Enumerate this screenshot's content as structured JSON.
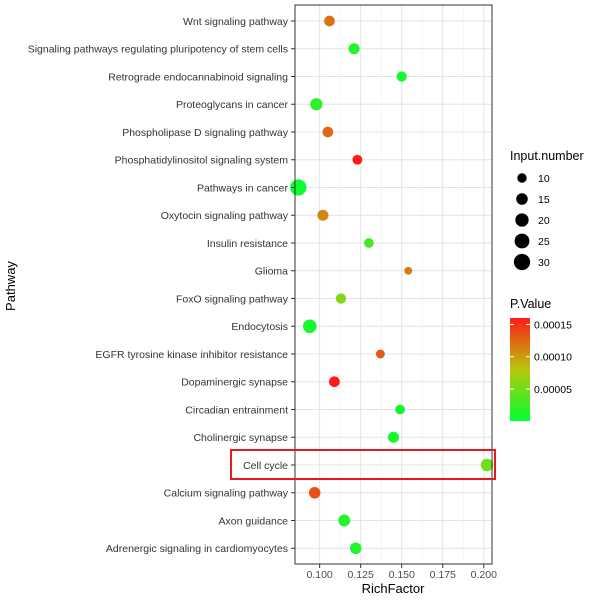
{
  "chart_data": {
    "type": "scatter",
    "xlabel": "RichFactor",
    "ylabel": "Pathway",
    "xlim": [
      0.085,
      0.205
    ],
    "xticks": [
      0.1,
      0.125,
      0.15,
      0.175,
      0.2
    ],
    "xtick_labels": [
      "0.100",
      "0.125",
      "0.150",
      "0.175",
      "0.200"
    ],
    "categories": [
      "Wnt signaling pathway",
      "Signaling pathways regulating pluripotency of stem cells",
      "Retrograde endocannabinoid signaling",
      "Proteoglycans in cancer",
      "Phospholipase D signaling pathway",
      "Phosphatidylinositol signaling system",
      "Pathways in cancer",
      "Oxytocin signaling pathway",
      "Insulin resistance",
      "Glioma",
      "FoxO signaling pathway",
      "Endocytosis",
      "EGFR tyrosine kinase inhibitor resistance",
      "Dopaminergic synapse",
      "Circadian entrainment",
      "Cholinergic synapse",
      "Cell cycle",
      "Calcium signaling pathway",
      "Axon guidance",
      "Adrenergic signaling in cardiomyocytes"
    ],
    "points": [
      {
        "pathway": "Wnt signaling pathway",
        "rich_factor": 0.106,
        "input_number": 13,
        "p_value": 0.00012
      },
      {
        "pathway": "Signaling pathways regulating pluripotency of stem cells",
        "rich_factor": 0.121,
        "input_number": 14,
        "p_value": 1.5e-05
      },
      {
        "pathway": "Retrograde endocannabinoid signaling",
        "rich_factor": 0.15,
        "input_number": 12,
        "p_value": 5e-06
      },
      {
        "pathway": "Proteoglycans in cancer",
        "rich_factor": 0.098,
        "input_number": 17,
        "p_value": 2e-05
      },
      {
        "pathway": "Phospholipase D signaling pathway",
        "rich_factor": 0.105,
        "input_number": 13,
        "p_value": 0.000125
      },
      {
        "pathway": "Phosphatidylinositol signaling system",
        "rich_factor": 0.123,
        "input_number": 11,
        "p_value": 0.00016
      },
      {
        "pathway": "Pathways in cancer",
        "rich_factor": 0.087,
        "input_number": 30,
        "p_value": 5e-06
      },
      {
        "pathway": "Oxytocin signaling pathway",
        "rich_factor": 0.102,
        "input_number": 14,
        "p_value": 0.00011
      },
      {
        "pathway": "Insulin resistance",
        "rich_factor": 0.13,
        "input_number": 11,
        "p_value": 3e-05
      },
      {
        "pathway": "Glioma",
        "rich_factor": 0.154,
        "input_number": 7,
        "p_value": 0.000115
      },
      {
        "pathway": "FoxO signaling pathway",
        "rich_factor": 0.113,
        "input_number": 12,
        "p_value": 5.5e-05
      },
      {
        "pathway": "Endocytosis",
        "rich_factor": 0.094,
        "input_number": 21,
        "p_value": 1e-05
      },
      {
        "pathway": "EGFR tyrosine kinase inhibitor resistance",
        "rich_factor": 0.137,
        "input_number": 9,
        "p_value": 0.00013
      },
      {
        "pathway": "Dopaminergic synapse",
        "rich_factor": 0.109,
        "input_number": 13,
        "p_value": 0.00016
      },
      {
        "pathway": "Circadian entrainment",
        "rich_factor": 0.149,
        "input_number": 11,
        "p_value": 1e-05
      },
      {
        "pathway": "Cholinergic synapse",
        "rich_factor": 0.145,
        "input_number": 14,
        "p_value": 1e-05
      },
      {
        "pathway": "Cell cycle",
        "rich_factor": 0.202,
        "input_number": 18,
        "p_value": 5e-05
      },
      {
        "pathway": "Calcium signaling pathway",
        "rich_factor": 0.097,
        "input_number": 15,
        "p_value": 0.000135
      },
      {
        "pathway": "Axon guidance",
        "rich_factor": 0.115,
        "input_number": 16,
        "p_value": 1.5e-05
      },
      {
        "pathway": "Adrenergic signaling in cardiomyocytes",
        "rich_factor": 0.122,
        "input_number": 15,
        "p_value": 1.5e-05
      }
    ],
    "size_legend": {
      "title": "Input.number",
      "values": [
        10,
        15,
        20,
        25,
        30
      ],
      "labels": [
        "10",
        "15",
        "20",
        "25",
        "30"
      ]
    },
    "color_legend": {
      "title": "P.Value",
      "range": [
        5e-07,
        0.00016
      ],
      "ticks": [
        0.00015,
        0.0001,
        5e-05
      ],
      "labels": [
        "0.00015",
        "0.00010",
        "0.00005"
      ],
      "colors": [
        "#00ff33",
        "#ff1a1a"
      ]
    },
    "highlight": {
      "pathway": "Cell cycle",
      "color": "#e8191e"
    },
    "grid": true,
    "legend_placement": "right"
  }
}
